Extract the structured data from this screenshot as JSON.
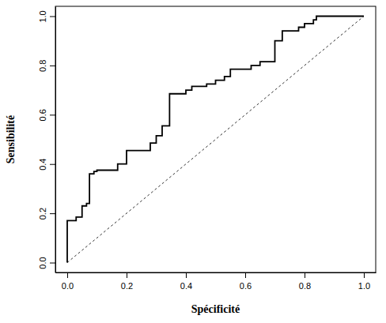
{
  "chart_data": {
    "type": "line",
    "x_label": "Spécificité",
    "y_label": "Sensibilité",
    "xlim": [
      -0.04,
      1.04
    ],
    "ylim": [
      -0.04,
      1.04
    ],
    "xticks": [
      {
        "value": 0,
        "label": "0.0"
      },
      {
        "value": 0.2,
        "label": "0.2"
      },
      {
        "value": 0.4,
        "label": "0.4"
      },
      {
        "value": 0.6,
        "label": "0.6"
      },
      {
        "value": 0.8,
        "label": "0.8"
      },
      {
        "value": 1,
        "label": "1.0"
      }
    ],
    "yticks": [
      {
        "value": 0,
        "label": "0.0"
      },
      {
        "value": 0.2,
        "label": "0.2"
      },
      {
        "value": 0.4,
        "label": "0.4"
      },
      {
        "value": 0.6,
        "label": "0.6"
      },
      {
        "value": 0.8,
        "label": "0.8"
      },
      {
        "value": 1,
        "label": "1.0"
      }
    ],
    "grid": false,
    "series": [
      {
        "color": "#000000",
        "line_style": "solid",
        "x": [
          0,
          0,
          0.03,
          0.03,
          0.05,
          0.05,
          0.065,
          0.065,
          0.075,
          0.075,
          0.09,
          0.09,
          0.1,
          0.1,
          0.17,
          0.17,
          0.2,
          0.2,
          0.28,
          0.28,
          0.3,
          0.3,
          0.32,
          0.32,
          0.345,
          0.345,
          0.4,
          0.4,
          0.42,
          0.42,
          0.47,
          0.47,
          0.5,
          0.5,
          0.53,
          0.53,
          0.55,
          0.55,
          0.62,
          0.62,
          0.65,
          0.65,
          0.7,
          0.7,
          0.725,
          0.725,
          0.78,
          0.78,
          0.8,
          0.8,
          0.83,
          0.83,
          0.84,
          0.84,
          1
        ],
        "values": [
          0,
          0.17,
          0.17,
          0.185,
          0.185,
          0.23,
          0.23,
          0.24,
          0.24,
          0.36,
          0.36,
          0.37,
          0.37,
          0.375,
          0.375,
          0.4,
          0.4,
          0.455,
          0.455,
          0.485,
          0.485,
          0.515,
          0.515,
          0.555,
          0.555,
          0.685,
          0.685,
          0.7,
          0.7,
          0.715,
          0.715,
          0.725,
          0.725,
          0.74,
          0.74,
          0.755,
          0.755,
          0.785,
          0.785,
          0.8,
          0.8,
          0.815,
          0.815,
          0.9,
          0.9,
          0.94,
          0.94,
          0.955,
          0.955,
          0.97,
          0.97,
          0.985,
          0.985,
          1,
          1
        ]
      },
      {
        "color": "#000000",
        "line_style": "dashed",
        "x": [
          0,
          1
        ],
        "values": [
          0,
          1
        ]
      }
    ]
  }
}
